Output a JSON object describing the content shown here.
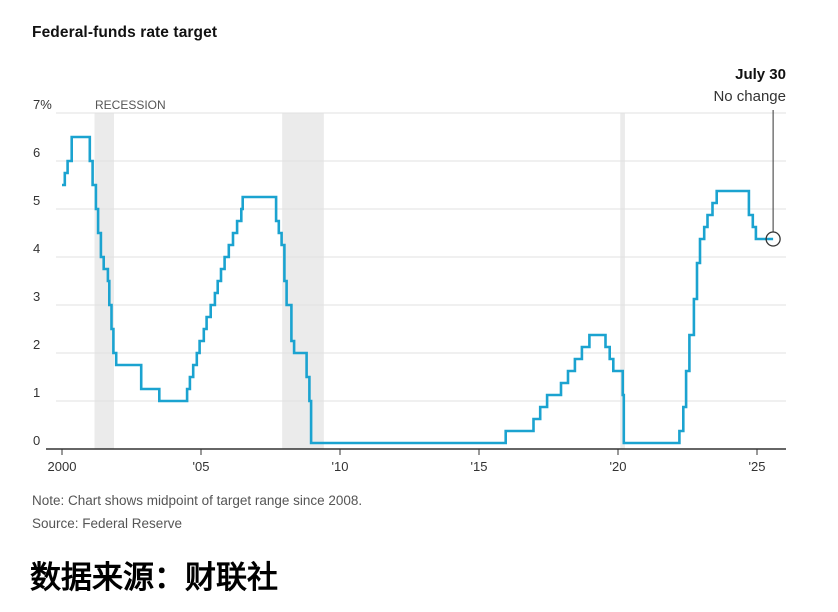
{
  "chart_title": "Federal-funds rate target",
  "note": "Note: Chart shows midpoint of target range since 2008.",
  "source": "Source: Federal Reserve",
  "footer": "数据来源：财联社",
  "colors": {
    "line": "#1ba3d0",
    "recession": "#ebebeb",
    "grid": "#e2e2e2",
    "text": "#555555"
  },
  "chart_data": {
    "type": "line",
    "title": "Federal-funds rate target",
    "xlabel": "",
    "ylabel": "",
    "ylim": [
      0,
      7
    ],
    "xlim": [
      1999.9,
      2026.0
    ],
    "x_tick_values": [
      2000,
      2005,
      2010,
      2015,
      2020,
      2025
    ],
    "x_tick_labels": [
      "2000",
      "'05",
      "'10",
      "'15",
      "'20",
      "'25"
    ],
    "y_tick_values": [
      0,
      1,
      2,
      3,
      4,
      5,
      6,
      7
    ],
    "y_tick_labels": [
      "0",
      "1",
      "2",
      "3",
      "4",
      "5",
      "6",
      "7%"
    ],
    "grid": true,
    "recession_label": "RECESSION",
    "recessions": [
      {
        "start": 2001.17,
        "end": 2001.87
      },
      {
        "start": 2007.92,
        "end": 2009.42
      },
      {
        "start": 2020.08,
        "end": 2020.25
      }
    ],
    "annotation": {
      "x": 2025.58,
      "y": 4.375,
      "title": "July 30",
      "text": "No change"
    },
    "series": [
      {
        "points": [
          [
            2000.0,
            5.5
          ],
          [
            2000.1,
            5.75
          ],
          [
            2000.2,
            6.0
          ],
          [
            2000.35,
            6.5
          ],
          [
            2001.0,
            6.0
          ],
          [
            2001.1,
            5.5
          ],
          [
            2001.22,
            5.0
          ],
          [
            2001.3,
            4.5
          ],
          [
            2001.4,
            4.0
          ],
          [
            2001.5,
            3.75
          ],
          [
            2001.65,
            3.5
          ],
          [
            2001.7,
            3.0
          ],
          [
            2001.78,
            2.5
          ],
          [
            2001.85,
            2.0
          ],
          [
            2001.95,
            1.75
          ],
          [
            2002.85,
            1.25
          ],
          [
            2003.5,
            1.0
          ],
          [
            2004.5,
            1.25
          ],
          [
            2004.6,
            1.5
          ],
          [
            2004.72,
            1.75
          ],
          [
            2004.85,
            2.0
          ],
          [
            2004.95,
            2.25
          ],
          [
            2005.1,
            2.5
          ],
          [
            2005.2,
            2.75
          ],
          [
            2005.35,
            3.0
          ],
          [
            2005.5,
            3.25
          ],
          [
            2005.6,
            3.5
          ],
          [
            2005.72,
            3.75
          ],
          [
            2005.85,
            4.0
          ],
          [
            2006.0,
            4.25
          ],
          [
            2006.15,
            4.5
          ],
          [
            2006.3,
            4.75
          ],
          [
            2006.45,
            5.0
          ],
          [
            2006.5,
            5.25
          ],
          [
            2007.7,
            4.75
          ],
          [
            2007.8,
            4.5
          ],
          [
            2007.9,
            4.25
          ],
          [
            2008.0,
            3.5
          ],
          [
            2008.08,
            3.0
          ],
          [
            2008.25,
            2.25
          ],
          [
            2008.35,
            2.0
          ],
          [
            2008.8,
            1.5
          ],
          [
            2008.9,
            1.0
          ],
          [
            2008.96,
            0.125
          ],
          [
            2015.96,
            0.375
          ],
          [
            2016.96,
            0.625
          ],
          [
            2017.2,
            0.875
          ],
          [
            2017.45,
            1.125
          ],
          [
            2017.95,
            1.375
          ],
          [
            2018.2,
            1.625
          ],
          [
            2018.45,
            1.875
          ],
          [
            2018.7,
            2.125
          ],
          [
            2018.97,
            2.375
          ],
          [
            2019.55,
            2.125
          ],
          [
            2019.7,
            1.875
          ],
          [
            2019.83,
            1.625
          ],
          [
            2020.17,
            1.125
          ],
          [
            2020.21,
            0.125
          ],
          [
            2022.21,
            0.375
          ],
          [
            2022.35,
            0.875
          ],
          [
            2022.45,
            1.625
          ],
          [
            2022.57,
            2.375
          ],
          [
            2022.73,
            3.125
          ],
          [
            2022.84,
            3.875
          ],
          [
            2022.95,
            4.375
          ],
          [
            2023.1,
            4.625
          ],
          [
            2023.22,
            4.875
          ],
          [
            2023.4,
            5.125
          ],
          [
            2023.55,
            5.375
          ],
          [
            2024.71,
            4.875
          ],
          [
            2024.85,
            4.625
          ],
          [
            2024.96,
            4.375
          ],
          [
            2025.58,
            4.375
          ]
        ]
      }
    ]
  }
}
